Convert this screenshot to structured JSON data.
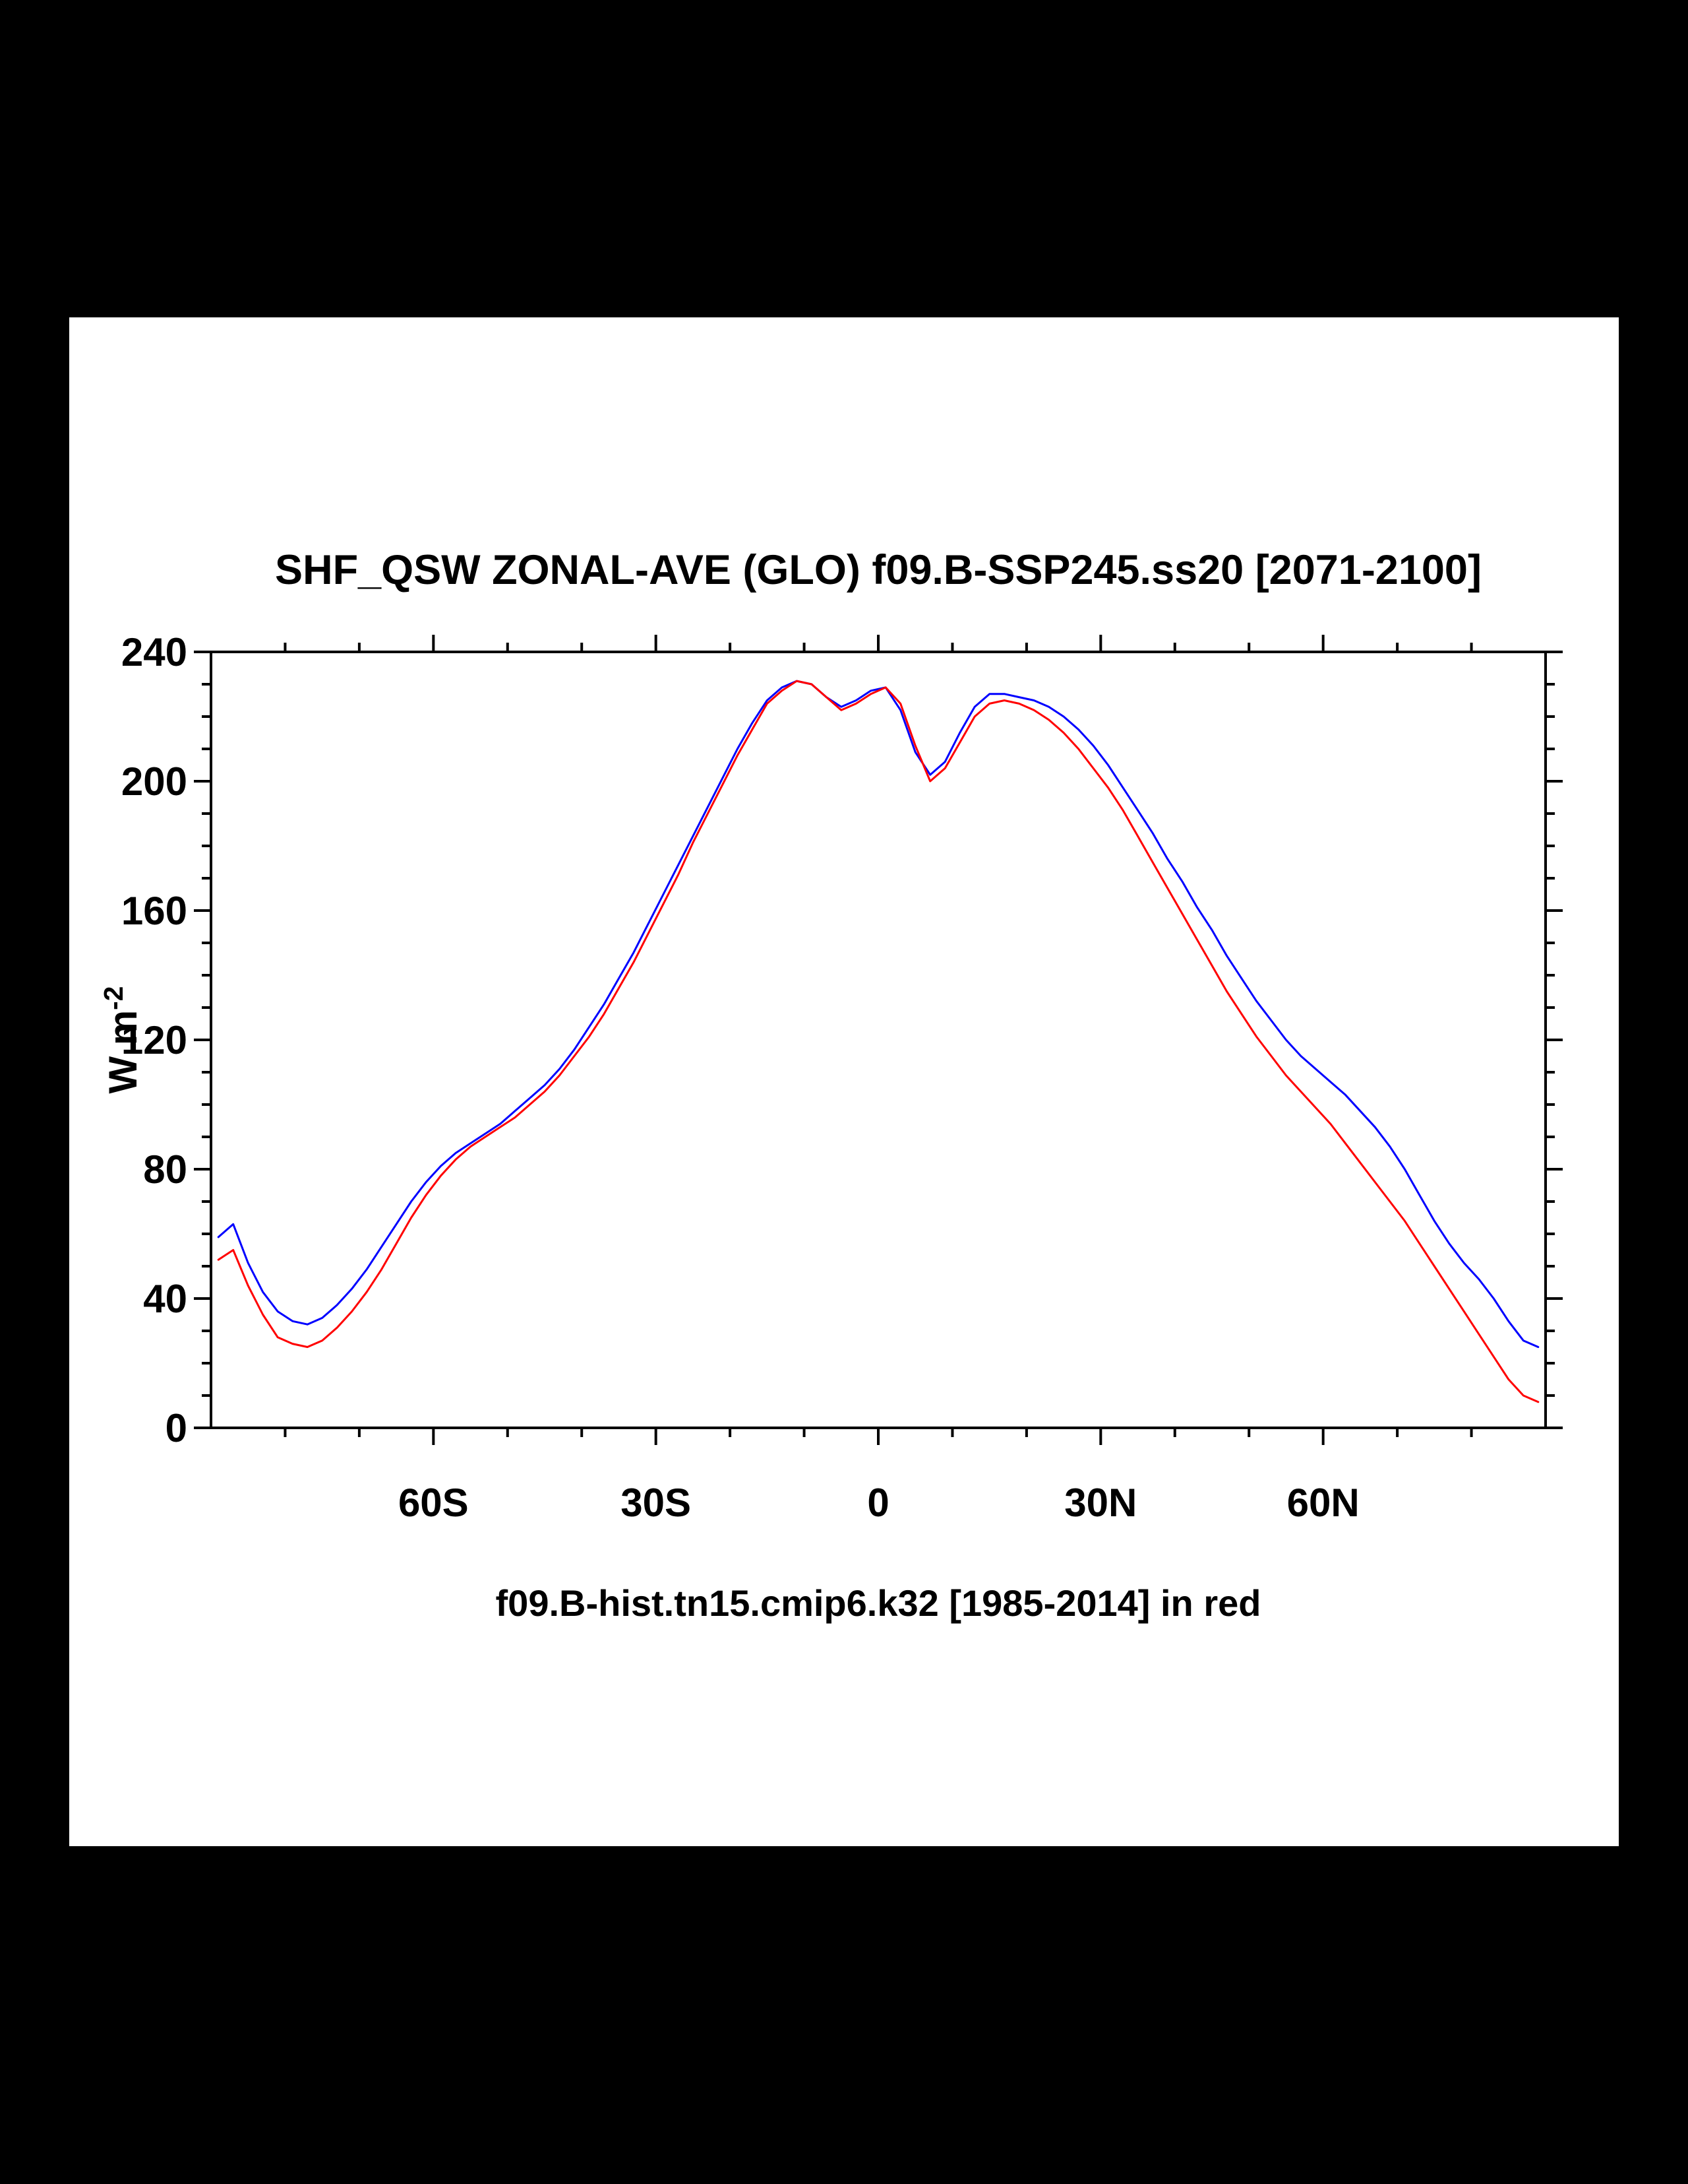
{
  "colors": {
    "page_background": "#000000",
    "panel_background": "#ffffff",
    "frame": "#000000",
    "series_future": "#0000ff",
    "series_hist": "#ff0000"
  },
  "chart_data": {
    "type": "line",
    "title": "SHF_QSW ZONAL-AVE (GLO) f09.B-SSP245.ss20 [2071-2100]",
    "caption": "f09.B-hist.tn15.cmip6.k32 [1985-2014] in red",
    "ylabel_base": "W m",
    "ylabel_exp": "-2",
    "xlim": [
      -90,
      90
    ],
    "ylim": [
      0,
      240
    ],
    "grid": false,
    "legend": "none",
    "x_ticks": {
      "major_values": [
        -60,
        -30,
        0,
        30,
        60
      ],
      "major_labels": [
        "60S",
        "30S",
        "0",
        "30N",
        "60N"
      ],
      "minor_step": 10
    },
    "y_ticks": {
      "major_values": [
        0,
        40,
        80,
        120,
        160,
        200,
        240
      ],
      "major_labels": [
        "0",
        "40",
        "80",
        "120",
        "160",
        "200",
        "240"
      ],
      "minor_step": 10
    },
    "x": [
      -89,
      -87,
      -85,
      -83,
      -81,
      -79,
      -77,
      -75,
      -73,
      -71,
      -69,
      -67,
      -65,
      -63,
      -61,
      -59,
      -57,
      -55,
      -53,
      -51,
      -49,
      -47,
      -45,
      -43,
      -41,
      -39,
      -37,
      -35,
      -33,
      -31,
      -29,
      -27,
      -25,
      -23,
      -21,
      -19,
      -17,
      -15,
      -13,
      -11,
      -9,
      -7,
      -5,
      -3,
      -1,
      1,
      3,
      5,
      7,
      9,
      11,
      13,
      15,
      17,
      19,
      21,
      23,
      25,
      27,
      29,
      31,
      33,
      35,
      37,
      39,
      41,
      43,
      45,
      47,
      49,
      51,
      53,
      55,
      57,
      59,
      61,
      63,
      65,
      67,
      69,
      71,
      73,
      75,
      77,
      79,
      81,
      83,
      85,
      87,
      89
    ],
    "series": [
      {
        "key": "ssp245",
        "name": "f09.B-SSP245.ss20 [2071-2100]",
        "color": "#0000ff",
        "values": [
          59,
          63,
          51,
          42,
          36,
          33,
          32,
          34,
          38,
          43,
          49,
          56,
          63,
          70,
          76,
          81,
          85,
          88,
          91,
          94,
          98,
          102,
          106,
          111,
          117,
          124,
          131,
          139,
          147,
          156,
          165,
          174,
          183,
          192,
          201,
          210,
          218,
          225,
          229,
          231,
          230,
          226,
          223,
          225,
          228,
          229,
          222,
          209,
          202,
          206,
          215,
          223,
          227,
          227,
          226,
          225,
          223,
          220,
          216,
          211,
          205,
          198,
          191,
          184,
          176,
          169,
          161,
          154,
          146,
          139,
          132,
          126,
          120,
          115,
          111,
          107,
          103,
          98,
          93,
          87,
          80,
          72,
          64,
          57,
          51,
          46,
          40,
          33,
          27,
          25
        ]
      },
      {
        "key": "hist",
        "name": "f09.B-hist.tn15.cmip6.k32 [1985-2014]",
        "color": "#ff0000",
        "values": [
          52,
          55,
          44,
          35,
          28,
          26,
          25,
          27,
          31,
          36,
          42,
          49,
          57,
          65,
          72,
          78,
          83,
          87,
          90,
          93,
          96,
          100,
          104,
          109,
          115,
          121,
          128,
          136,
          144,
          153,
          162,
          171,
          181,
          190,
          199,
          208,
          216,
          224,
          228,
          231,
          230,
          226,
          222,
          224,
          227,
          229,
          224,
          211,
          200,
          204,
          212,
          220,
          224,
          225,
          224,
          222,
          219,
          215,
          210,
          204,
          198,
          191,
          183,
          175,
          167,
          159,
          151,
          143,
          135,
          128,
          121,
          115,
          109,
          104,
          99,
          94,
          88,
          82,
          76,
          70,
          64,
          57,
          50,
          43,
          36,
          29,
          22,
          15,
          10,
          8
        ]
      }
    ]
  }
}
